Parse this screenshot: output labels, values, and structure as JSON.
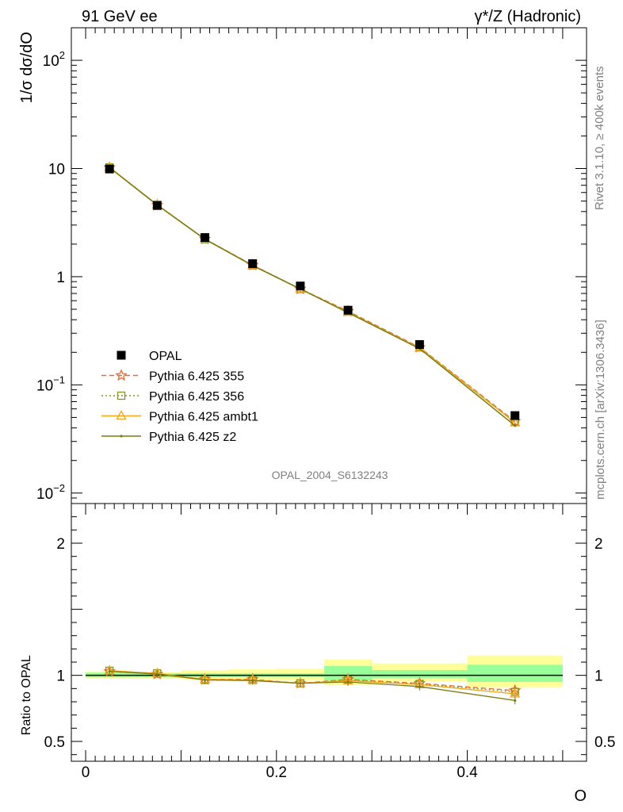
{
  "header": {
    "left": "91 GeV ee",
    "right": "γ*/Z (Hadronic)"
  },
  "side_labels": {
    "rivet": "Rivet 3.1.10, ≥ 400k events",
    "mcplots": "mcplots.cern.ch [arXiv:1306.3436]"
  },
  "watermark": "OPAL_2004_S6132243",
  "chart_data": [
    {
      "type": "line",
      "panel": "main",
      "ylabel": "1/σ dσ/dO",
      "yscale": "log",
      "ylim": [
        0.008,
        200
      ],
      "xlim": [
        -0.015,
        0.525
      ],
      "y_tick_labels": [
        "10^-2",
        "10^-1",
        "1",
        "10",
        "10^2"
      ],
      "legend_position": "middle-left",
      "x": [
        0.025,
        0.075,
        0.125,
        0.175,
        0.225,
        0.275,
        0.35,
        0.45
      ],
      "x_bin_edges": [
        0.0,
        0.05,
        0.1,
        0.15,
        0.2,
        0.25,
        0.3,
        0.4,
        0.5
      ],
      "series": [
        {
          "name": "OPAL",
          "values": [
            9.9,
            4.55,
            2.3,
            1.32,
            0.82,
            0.49,
            0.236,
            0.052
          ],
          "color": "#000000",
          "style": "marker-square"
        },
        {
          "name": "Pythia 6.425 355",
          "values": [
            10.2,
            4.6,
            2.23,
            1.28,
            0.77,
            0.48,
            0.222,
            0.046
          ],
          "color": "#ee6a2a",
          "style": "dashed-star"
        },
        {
          "name": "Pythia 6.425 356",
          "values": [
            10.25,
            4.62,
            2.22,
            1.27,
            0.77,
            0.475,
            0.221,
            0.0455
          ],
          "color": "#7f9a1e",
          "style": "dotted-open-square"
        },
        {
          "name": "Pythia 6.425 ambt1",
          "values": [
            10.25,
            4.62,
            2.23,
            1.27,
            0.77,
            0.47,
            0.219,
            0.0448
          ],
          "color": "#f2a51a",
          "style": "solid-open-triangle"
        },
        {
          "name": "Pythia 6.425 z2",
          "values": [
            10.2,
            4.6,
            2.22,
            1.27,
            0.77,
            0.465,
            0.216,
            0.042
          ],
          "color": "#7a7d12",
          "style": "solid-small-dot"
        }
      ]
    },
    {
      "type": "line",
      "panel": "ratio",
      "ylabel": "Ratio to OPAL",
      "xlabel": "O",
      "ylim": [
        0.35,
        2.3
      ],
      "y_tick_labels": [
        "0.5",
        "1",
        "2"
      ],
      "x_tick_labels": [
        "0",
        "0.2",
        "0.4"
      ],
      "x": [
        0.025,
        0.075,
        0.125,
        0.175,
        0.225,
        0.275,
        0.35,
        0.45
      ],
      "band_inner": [
        [
          0.985,
          1.02
        ],
        [
          0.985,
          1.015
        ],
        [
          0.985,
          1.015
        ],
        [
          0.985,
          1.015
        ],
        [
          0.985,
          1.015
        ],
        [
          0.96,
          1.07
        ],
        [
          0.98,
          1.04
        ],
        [
          0.95,
          1.08
        ]
      ],
      "band_outer": [
        [
          0.975,
          1.03
        ],
        [
          0.975,
          1.025
        ],
        [
          0.97,
          1.04
        ],
        [
          0.965,
          1.045
        ],
        [
          0.96,
          1.05
        ],
        [
          0.925,
          1.12
        ],
        [
          0.955,
          1.09
        ],
        [
          0.91,
          1.15
        ]
      ],
      "series": [
        {
          "name": "Pythia 6.425 355",
          "values": [
            1.03,
            1.01,
            0.97,
            0.97,
            0.94,
            0.97,
            0.94,
            0.885
          ],
          "color": "#ee6a2a",
          "style": "dashed-star"
        },
        {
          "name": "Pythia 6.425 356",
          "values": [
            1.035,
            1.015,
            0.965,
            0.965,
            0.94,
            0.965,
            0.935,
            0.875
          ],
          "color": "#7f9a1e",
          "style": "dotted-open-square"
        },
        {
          "name": "Pythia 6.425 ambt1",
          "values": [
            1.035,
            1.015,
            0.97,
            0.965,
            0.94,
            0.96,
            0.93,
            0.86
          ],
          "color": "#f2a51a",
          "style": "solid-open-triangle"
        },
        {
          "name": "Pythia 6.425 z2",
          "values": [
            1.03,
            1.01,
            0.965,
            0.96,
            0.94,
            0.95,
            0.915,
            0.81
          ],
          "color": "#7a7d12",
          "style": "solid-small-dot"
        }
      ]
    }
  ]
}
